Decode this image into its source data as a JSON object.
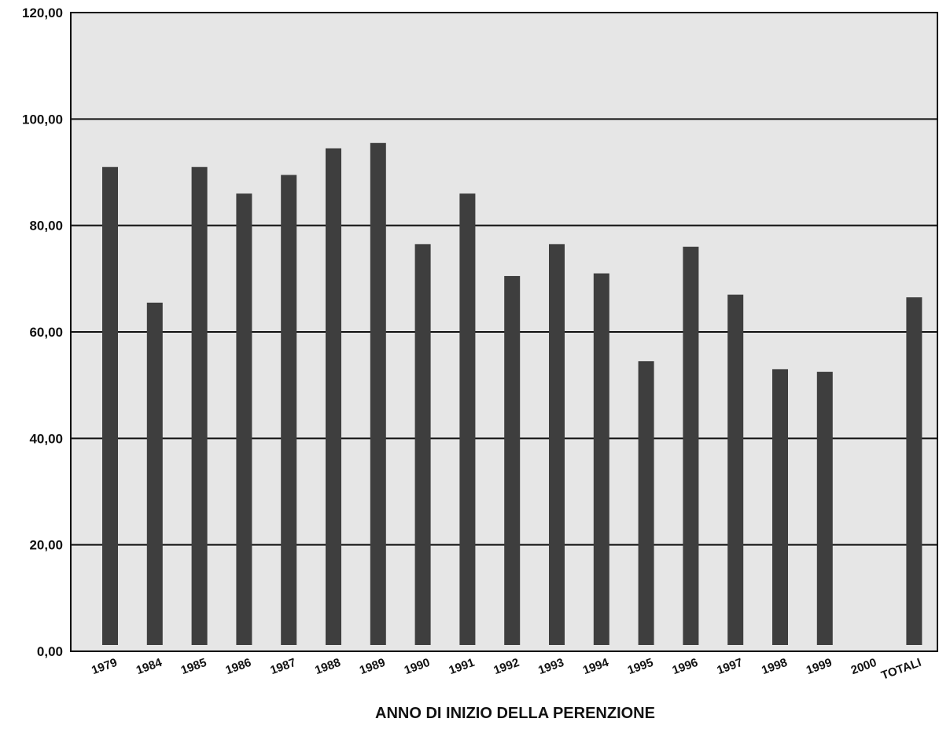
{
  "chart_data": {
    "type": "bar",
    "title": "",
    "xlabel": "ANNO DI INIZIO DELLA PERENZIONE",
    "ylabel": "",
    "ylim": [
      0,
      120
    ],
    "y_ticks": [
      "0,00",
      "20,00",
      "40,00",
      "60,00",
      "80,00",
      "100,00",
      "120,00"
    ],
    "grid": true,
    "categories": [
      "1979",
      "1984",
      "1985",
      "1986",
      "1987",
      "1988",
      "1989",
      "1990",
      "1991",
      "1992",
      "1993",
      "1994",
      "1995",
      "1996",
      "1997",
      "1998",
      "1999",
      "2000",
      "TOTALI"
    ],
    "values": [
      91,
      65.5,
      91,
      86,
      89.5,
      94.5,
      95.5,
      76.5,
      86,
      70.5,
      76.5,
      71,
      54.5,
      76,
      67,
      53,
      52.5,
      0,
      66.5
    ],
    "colors": {
      "bar": "#3e3e3e",
      "plot_bg": "#e6e6e6",
      "grid": "#111111"
    }
  }
}
